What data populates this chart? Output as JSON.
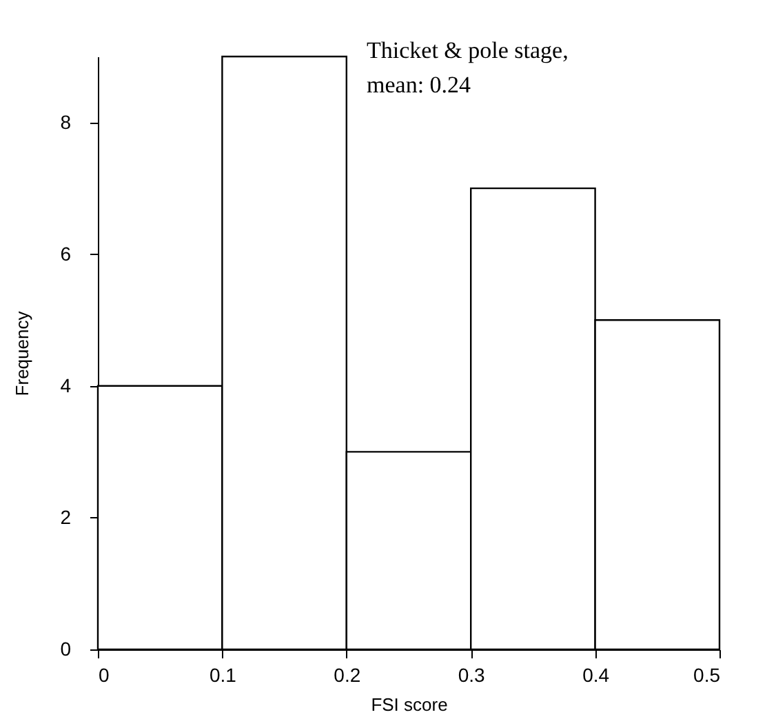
{
  "chart_data": {
    "type": "histogram",
    "bins": [
      0,
      0.1,
      0.2,
      0.3,
      0.4,
      0.5
    ],
    "values": [
      4,
      9,
      3,
      7,
      5
    ],
    "color": "#ffffff",
    "xlabel": "FSI score",
    "ylabel": "Frequency",
    "xlim": [
      0,
      0.5
    ],
    "xticks": [
      0,
      0.1,
      0.2,
      0.3,
      0.4,
      0.5
    ],
    "ylim": [
      0,
      9
    ],
    "yticks": [
      0,
      2,
      4,
      6,
      8
    ],
    "grid": false,
    "annotations": [
      "Thicket & pole stage,",
      "mean: 0.24"
    ]
  }
}
